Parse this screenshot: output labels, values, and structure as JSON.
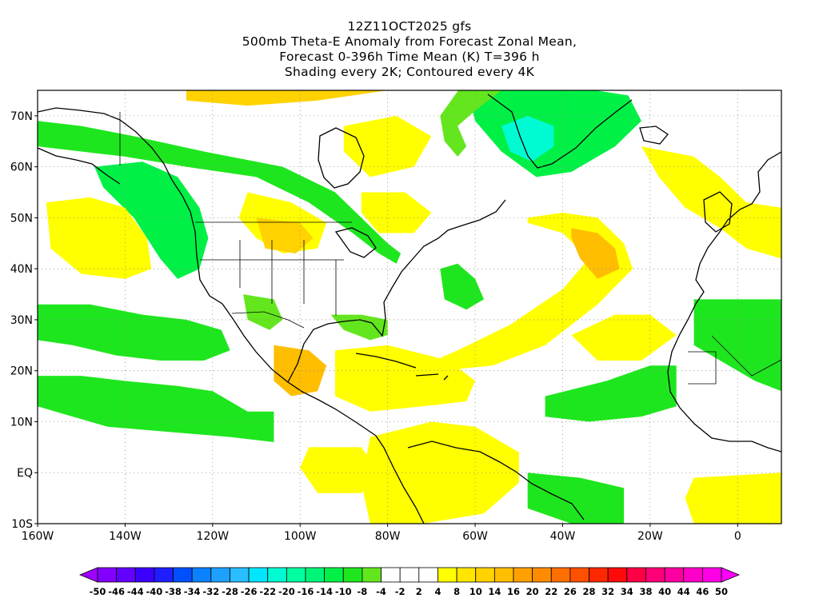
{
  "title": {
    "lines": [
      "12Z11OCT2025 gfs",
      "500mb Theta-E Anomaly from Forecast Zonal Mean,",
      "Forecast 0-396h Time Mean (K) T=396 h",
      "Shading every 2K; Contoured every 4K"
    ]
  },
  "map": {
    "projection": "cylindrical-equidistant",
    "lon_range": [
      -160,
      10
    ],
    "lat_range": [
      -10,
      75
    ],
    "grid": "dotted",
    "lat_ticks": [
      {
        "value": 70,
        "label": "70N"
      },
      {
        "value": 60,
        "label": "60N"
      },
      {
        "value": 50,
        "label": "50N"
      },
      {
        "value": 40,
        "label": "40N"
      },
      {
        "value": 30,
        "label": "30N"
      },
      {
        "value": 20,
        "label": "20N"
      },
      {
        "value": 10,
        "label": "10N"
      },
      {
        "value": 0,
        "label": "EQ"
      },
      {
        "value": -10,
        "label": "10S"
      }
    ],
    "lon_ticks": [
      {
        "value": -160,
        "label": "160W"
      },
      {
        "value": -140,
        "label": "140W"
      },
      {
        "value": -120,
        "label": "120W"
      },
      {
        "value": -100,
        "label": "100W"
      },
      {
        "value": -80,
        "label": "80W"
      },
      {
        "value": -60,
        "label": "60W"
      },
      {
        "value": -40,
        "label": "40W"
      },
      {
        "value": -20,
        "label": "20W"
      },
      {
        "value": 0,
        "label": "0"
      }
    ],
    "anomaly_regions": [
      {
        "name": "alaska-canada-green-band",
        "level": -8,
        "poly": [
          [
            -160,
            69
          ],
          [
            -150,
            68
          ],
          [
            -138,
            66
          ],
          [
            -122,
            63
          ],
          [
            -104,
            60
          ],
          [
            -92,
            55
          ],
          [
            -86,
            50
          ],
          [
            -80,
            45
          ],
          [
            -77,
            43
          ],
          [
            -78,
            41
          ],
          [
            -82,
            43
          ],
          [
            -88,
            47
          ],
          [
            -98,
            53
          ],
          [
            -110,
            58
          ],
          [
            -126,
            60
          ],
          [
            -140,
            62
          ],
          [
            -150,
            63
          ],
          [
            -160,
            64
          ]
        ]
      },
      {
        "name": "pacific-northwest-green",
        "level": -10,
        "poly": [
          [
            -147,
            60
          ],
          [
            -136,
            61
          ],
          [
            -128,
            58
          ],
          [
            -123,
            52
          ],
          [
            -121,
            46
          ],
          [
            -123,
            40
          ],
          [
            -128,
            38
          ],
          [
            -132,
            42
          ],
          [
            -138,
            50
          ],
          [
            -145,
            56
          ]
        ]
      },
      {
        "name": "greenland-green",
        "level": -10,
        "poly": [
          [
            -62,
            76
          ],
          [
            -40,
            76
          ],
          [
            -25,
            74
          ],
          [
            -22,
            69
          ],
          [
            -28,
            64
          ],
          [
            -38,
            59
          ],
          [
            -46,
            58
          ],
          [
            -54,
            63
          ],
          [
            -60,
            69
          ]
        ]
      },
      {
        "name": "greenland-core",
        "level": -20,
        "poly": [
          [
            -54,
            68
          ],
          [
            -48,
            70
          ],
          [
            -42,
            68
          ],
          [
            -42,
            64
          ],
          [
            -47,
            61
          ],
          [
            -52,
            63
          ]
        ]
      },
      {
        "name": "labrador-sea-green",
        "level": -6,
        "poly": [
          [
            -63,
            76
          ],
          [
            -54,
            75
          ],
          [
            -60,
            71
          ],
          [
            -64,
            68
          ],
          [
            -62,
            64
          ],
          [
            -64,
            62
          ],
          [
            -67,
            65
          ],
          [
            -68,
            70
          ]
        ]
      },
      {
        "name": "central-pacific-green-band",
        "level": -8,
        "poly": [
          [
            -160,
            33
          ],
          [
            -148,
            33
          ],
          [
            -136,
            31
          ],
          [
            -126,
            30
          ],
          [
            -118,
            28
          ],
          [
            -116,
            24
          ],
          [
            -122,
            22
          ],
          [
            -132,
            22
          ],
          [
            -142,
            23
          ],
          [
            -152,
            25
          ],
          [
            -160,
            26
          ]
        ]
      },
      {
        "name": "hawaii-green",
        "level": -8,
        "poly": [
          [
            -160,
            19
          ],
          [
            -150,
            19
          ],
          [
            -140,
            18
          ],
          [
            -128,
            17
          ],
          [
            -120,
            16
          ],
          [
            -112,
            12
          ],
          [
            -106,
            12
          ],
          [
            -106,
            6
          ],
          [
            -116,
            7
          ],
          [
            -130,
            8
          ],
          [
            -144,
            9
          ],
          [
            -152,
            11
          ],
          [
            -160,
            13
          ]
        ]
      },
      {
        "name": "atlantic-green-blob",
        "level": -8,
        "poly": [
          [
            -68,
            40
          ],
          [
            -64,
            41
          ],
          [
            -60,
            38
          ],
          [
            -58,
            34
          ],
          [
            -62,
            32
          ],
          [
            -67,
            34
          ]
        ]
      },
      {
        "name": "se-us-green",
        "level": -6,
        "poly": [
          [
            -93,
            31
          ],
          [
            -86,
            31
          ],
          [
            -80,
            30
          ],
          [
            -80,
            27
          ],
          [
            -84,
            26
          ],
          [
            -90,
            28
          ]
        ]
      },
      {
        "name": "baja-green",
        "level": -6,
        "poly": [
          [
            -113,
            35
          ],
          [
            -106,
            34
          ],
          [
            -104,
            30
          ],
          [
            -107,
            28
          ],
          [
            -112,
            30
          ]
        ]
      },
      {
        "name": "tropical-atlantic-green",
        "level": -8,
        "poly": [
          [
            -44,
            15
          ],
          [
            -30,
            18
          ],
          [
            -20,
            21
          ],
          [
            -14,
            21
          ],
          [
            -14,
            13
          ],
          [
            -22,
            11
          ],
          [
            -34,
            10
          ],
          [
            -44,
            11
          ]
        ]
      },
      {
        "name": "west-africa-green",
        "level": -8,
        "poly": [
          [
            -10,
            34
          ],
          [
            0,
            34
          ],
          [
            10,
            34
          ],
          [
            10,
            16
          ],
          [
            4,
            18
          ],
          [
            -4,
            22
          ],
          [
            -10,
            25
          ]
        ]
      },
      {
        "name": "se-atlantic-green",
        "level": -8,
        "poly": [
          [
            -48,
            0
          ],
          [
            -36,
            -1
          ],
          [
            -26,
            -3
          ],
          [
            -26,
            -10
          ],
          [
            -38,
            -10
          ],
          [
            -48,
            -7
          ]
        ]
      },
      {
        "name": "north-atlantic-yellow-arc",
        "level": 6,
        "poly": [
          [
            -48,
            50
          ],
          [
            -40,
            51
          ],
          [
            -32,
            50
          ],
          [
            -26,
            45
          ],
          [
            -24,
            40
          ],
          [
            -32,
            33
          ],
          [
            -44,
            25
          ],
          [
            -56,
            21
          ],
          [
            -68,
            20
          ],
          [
            -72,
            21
          ],
          [
            -64,
            24
          ],
          [
            -52,
            29
          ],
          [
            -40,
            36
          ],
          [
            -34,
            42
          ],
          [
            -40,
            47
          ],
          [
            -48,
            49
          ]
        ]
      },
      {
        "name": "north-atlantic-orange-core",
        "level": 12,
        "poly": [
          [
            -38,
            48
          ],
          [
            -32,
            47
          ],
          [
            -28,
            44
          ],
          [
            -27,
            40
          ],
          [
            -32,
            38
          ],
          [
            -36,
            42
          ],
          [
            -38,
            46
          ]
        ]
      },
      {
        "name": "canada-yellow",
        "level": 6,
        "poly": [
          [
            -112,
            55
          ],
          [
            -102,
            53
          ],
          [
            -94,
            49
          ],
          [
            -96,
            44
          ],
          [
            -104,
            43
          ],
          [
            -110,
            46
          ],
          [
            -114,
            50
          ]
        ]
      },
      {
        "name": "dakotas-orange",
        "level": 10,
        "poly": [
          [
            -110,
            50
          ],
          [
            -100,
            49
          ],
          [
            -97,
            46
          ],
          [
            -101,
            43
          ],
          [
            -108,
            44
          ]
        ]
      },
      {
        "name": "hudson-yellow",
        "level": 6,
        "poly": [
          [
            -90,
            68
          ],
          [
            -78,
            70
          ],
          [
            -70,
            66
          ],
          [
            -74,
            60
          ],
          [
            -84,
            58
          ],
          [
            -90,
            63
          ]
        ]
      },
      {
        "name": "arctic-orange",
        "level": 10,
        "poly": [
          [
            -126,
            76
          ],
          [
            -96,
            76
          ],
          [
            -80,
            75
          ],
          [
            -96,
            73
          ],
          [
            -112,
            72
          ],
          [
            -126,
            73
          ]
        ]
      },
      {
        "name": "quebec-yellow",
        "level": 6,
        "poly": [
          [
            -86,
            55
          ],
          [
            -76,
            55
          ],
          [
            -70,
            51
          ],
          [
            -74,
            47
          ],
          [
            -82,
            47
          ],
          [
            -86,
            51
          ]
        ]
      },
      {
        "name": "pacific-yellow-blob",
        "level": 6,
        "poly": [
          [
            -158,
            53
          ],
          [
            -148,
            54
          ],
          [
            -140,
            52
          ],
          [
            -135,
            46
          ],
          [
            -134,
            40
          ],
          [
            -140,
            38
          ],
          [
            -150,
            39
          ],
          [
            -157,
            44
          ]
        ]
      },
      {
        "name": "mexico-orange",
        "level": 12,
        "poly": [
          [
            -106,
            25
          ],
          [
            -98,
            24
          ],
          [
            -94,
            21
          ],
          [
            -96,
            16
          ],
          [
            -102,
            15
          ],
          [
            -106,
            18
          ]
        ]
      },
      {
        "name": "caribbean-yellow",
        "level": 6,
        "poly": [
          [
            -92,
            24
          ],
          [
            -80,
            25
          ],
          [
            -66,
            22
          ],
          [
            -60,
            18
          ],
          [
            -62,
            14
          ],
          [
            -72,
            13
          ],
          [
            -84,
            12
          ],
          [
            -92,
            15
          ]
        ]
      },
      {
        "name": "south-america-yellow",
        "level": 6,
        "poly": [
          [
            -84,
            7
          ],
          [
            -70,
            10
          ],
          [
            -60,
            9
          ],
          [
            -50,
            4
          ],
          [
            -50,
            -2
          ],
          [
            -58,
            -8
          ],
          [
            -72,
            -10
          ],
          [
            -84,
            -10
          ],
          [
            -86,
            -2
          ]
        ]
      },
      {
        "name": "e-pacific-yellow",
        "level": 6,
        "poly": [
          [
            -98,
            5
          ],
          [
            -86,
            5
          ],
          [
            -82,
            0
          ],
          [
            -86,
            -4
          ],
          [
            -96,
            -4
          ],
          [
            -100,
            1
          ]
        ]
      },
      {
        "name": "african-atlantic-yellow",
        "level": 6,
        "poly": [
          [
            -38,
            27
          ],
          [
            -28,
            31
          ],
          [
            -20,
            31
          ],
          [
            -14,
            27
          ],
          [
            -22,
            22
          ],
          [
            -32,
            22
          ]
        ]
      },
      {
        "name": "s-atlantic-yellow",
        "level": 6,
        "poly": [
          [
            -10,
            -1
          ],
          [
            10,
            0
          ],
          [
            10,
            -10
          ],
          [
            -10,
            -10
          ],
          [
            -12,
            -5
          ]
        ]
      },
      {
        "name": "europe-yellow",
        "level": 6,
        "poly": [
          [
            -22,
            64
          ],
          [
            -10,
            62
          ],
          [
            -4,
            58
          ],
          [
            2,
            53
          ],
          [
            10,
            52
          ],
          [
            10,
            42
          ],
          [
            2,
            44
          ],
          [
            -4,
            48
          ],
          [
            -12,
            52
          ],
          [
            -18,
            58
          ]
        ]
      }
    ],
    "colorbar": {
      "labels": [
        "-50",
        "-46",
        "-44",
        "-40",
        "-38",
        "-34",
        "-32",
        "-28",
        "-26",
        "-22",
        "-20",
        "-16",
        "-14",
        "-10",
        "-8",
        "-4",
        "-2",
        "2",
        "4",
        "8",
        "10",
        "14",
        "16",
        "20",
        "22",
        "26",
        "28",
        "32",
        "34",
        "38",
        "40",
        "44",
        "46",
        "50"
      ],
      "colors": [
        "#a000ff",
        "#8200ff",
        "#6400ff",
        "#3c00ff",
        "#1e1eff",
        "#0050ff",
        "#0a82ff",
        "#1ea0ff",
        "#28beff",
        "#00e6ff",
        "#00fad2",
        "#00ffa0",
        "#00f578",
        "#00f046",
        "#1ee61e",
        "#64e61e",
        "#ffffff",
        "#ffffff",
        "#ffffff",
        "#ffff00",
        "#ffe600",
        "#ffd200",
        "#ffbe00",
        "#ffa000",
        "#ff8c00",
        "#ff6e00",
        "#ff5000",
        "#ff2800",
        "#ff0a0a",
        "#ff0046",
        "#ff0078",
        "#ff00a0",
        "#ff00c8",
        "#ff00e6",
        "#ff00ff"
      ]
    }
  }
}
